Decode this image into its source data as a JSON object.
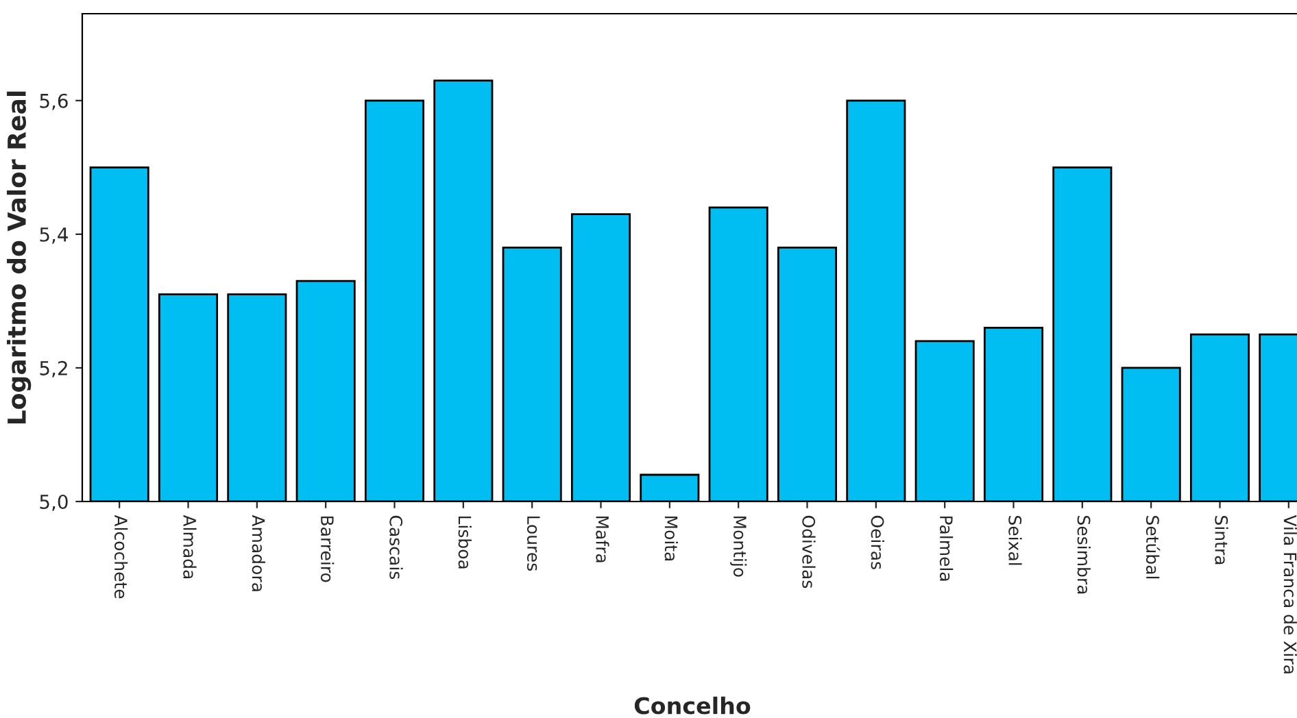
{
  "chart_data": {
    "type": "bar",
    "xlabel": "Concelho",
    "ylabel": "Logaritmo do Valor Real",
    "categories": [
      "Alcochete",
      "Almada",
      "Amadora",
      "Barreiro",
      "Cascais",
      "Lisboa",
      "Loures",
      "Mafra",
      "Moita",
      "Montijo",
      "Odivelas",
      "Oeiras",
      "Palmela",
      "Seixal",
      "Sesimbra",
      "Setúbal",
      "Sintra",
      "Vila Franca de Xira"
    ],
    "values": [
      5.5,
      5.31,
      5.31,
      5.33,
      5.6,
      5.63,
      5.38,
      5.43,
      5.04,
      5.44,
      5.38,
      5.6,
      5.24,
      5.26,
      5.5,
      5.2,
      5.25,
      5.25
    ],
    "color": "#00bef2",
    "ylim": [
      5.0,
      5.73
    ],
    "yticks": [
      {
        "value": 5.0,
        "label": "5,0"
      },
      {
        "value": 5.2,
        "label": "5,2"
      },
      {
        "value": 5.4,
        "label": "5,4"
      },
      {
        "value": 5.6,
        "label": "5,6"
      }
    ],
    "grid": false
  }
}
